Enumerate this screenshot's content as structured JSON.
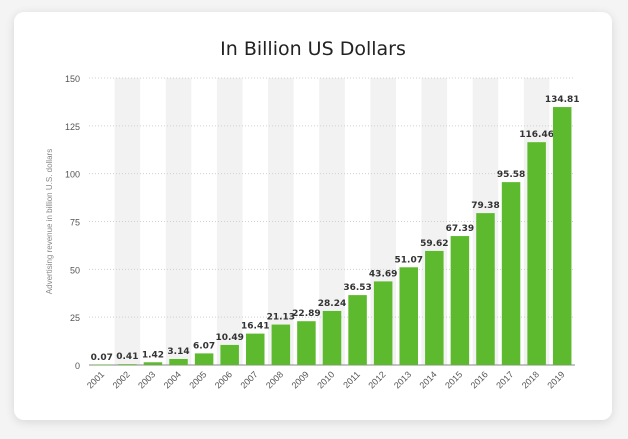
{
  "chart_data": {
    "type": "bar",
    "title": "In Billion US Dollars",
    "xlabel": "",
    "ylabel": "Advertising revenue in billion U.S. dollars",
    "categories": [
      "2001",
      "2002",
      "2003",
      "2004",
      "2005",
      "2006",
      "2007",
      "2008",
      "2009",
      "2010",
      "2011",
      "2012",
      "2013",
      "2014",
      "2015",
      "2016",
      "2017",
      "2018",
      "2019"
    ],
    "values": [
      0.07,
      0.41,
      1.42,
      3.14,
      6.07,
      10.49,
      16.41,
      21.13,
      22.89,
      28.24,
      36.53,
      43.69,
      51.07,
      59.62,
      67.39,
      79.38,
      95.58,
      116.46,
      134.81
    ],
    "value_labels": [
      "0.07",
      "0.41",
      "1.42",
      "3.14",
      "6.07",
      "10.49",
      "16.41",
      "21.13",
      "22.89",
      "28.24",
      "36.53",
      "43.69",
      "51.07",
      "59.62",
      "67.39",
      "79.38",
      "95.58",
      "116.46",
      "134.81"
    ],
    "ylim": [
      0,
      150
    ],
    "yticks": [
      0,
      25,
      50,
      75,
      100,
      125,
      150
    ],
    "ytick_labels": [
      "0",
      "25",
      "50",
      "75",
      "100",
      "125",
      "150"
    ],
    "grid": true,
    "bar_color": "#5dba2f",
    "band_color": "#f2f2f2"
  }
}
